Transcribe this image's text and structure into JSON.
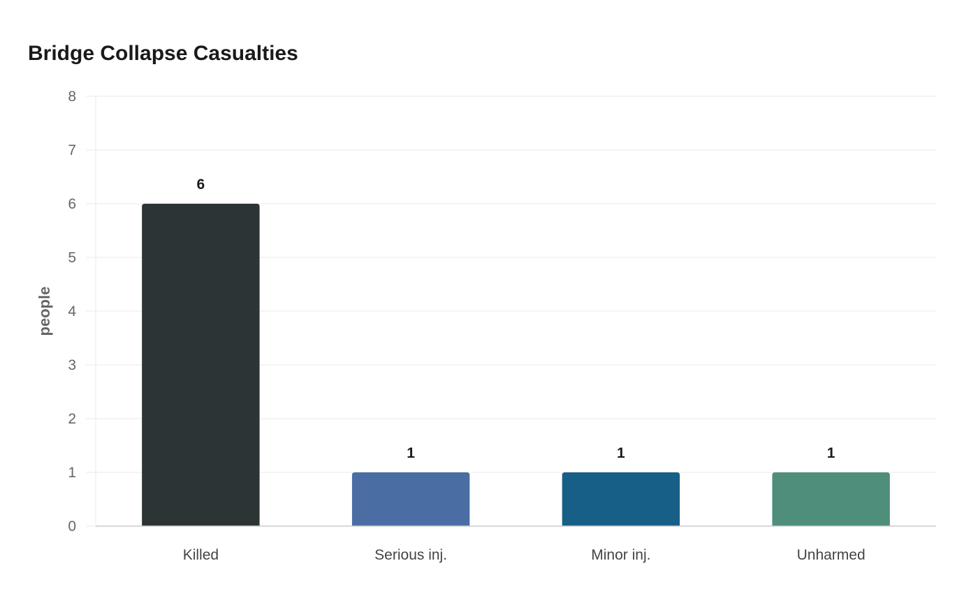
{
  "chart_data": {
    "type": "bar",
    "title": "Bridge Collapse Casualties",
    "xlabel": "",
    "ylabel": "people",
    "categories": [
      "Killed",
      "Serious inj.",
      "Minor inj.",
      "Unharmed"
    ],
    "values": [
      6,
      1,
      1,
      1
    ],
    "colors": [
      "#2d3436",
      "#4a6ea3",
      "#175f86",
      "#4e8e7a"
    ],
    "ylim": [
      0,
      8
    ],
    "yticks": [
      0,
      1,
      2,
      3,
      4,
      5,
      6,
      7,
      8
    ],
    "grid": true,
    "data_labels": true
  }
}
